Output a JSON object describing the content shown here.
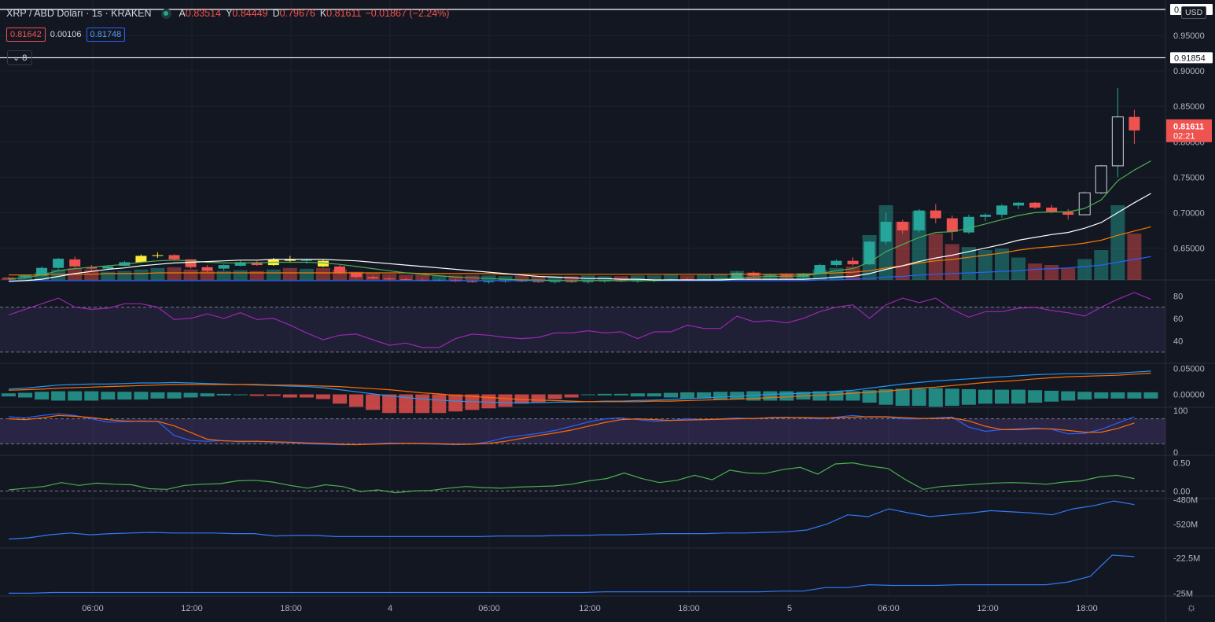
{
  "header": {
    "symbol": "XRP / ABD Doları · 1s · KRAKEN",
    "o_label": "A",
    "o_value": "0.83514",
    "h_label": "Y",
    "h_value": "0.84449",
    "l_label": "D",
    "l_value": "0.79676",
    "c_label": "K",
    "c_value": "0.81611",
    "change": "−0.01867 (−2.24%)"
  },
  "trade": {
    "sell": "0.81642",
    "spread": "0.00106",
    "buy": "0.81748"
  },
  "indicators_toggle": "8",
  "currency": "USD",
  "colors": {
    "up": "#26a69a",
    "down": "#ef5350",
    "bg": "#131722",
    "grid": "#1e222d",
    "yellow": "#ffeb3b"
  },
  "chart_data": {
    "type": "candlestick",
    "x_tick_labels": [
      "06:00",
      "12:00",
      "18:00",
      "4",
      "06:00",
      "12:00",
      "18:00",
      "5",
      "06:00",
      "12:00",
      "18:00"
    ],
    "price_axis": {
      "ticks": [
        "0.65000",
        "0.70000",
        "0.75000",
        "0.80000",
        "0.85000",
        "0.90000",
        "0.95000"
      ],
      "range": [
        0.605,
        1.0
      ],
      "hlines": [
        "0.98671",
        "0.91854"
      ],
      "last_price": "0.81611",
      "countdown": "02:21"
    },
    "candles": [
      [
        0.608,
        0.609,
        0.606,
        0.607
      ],
      [
        0.609,
        0.612,
        0.607,
        0.611
      ],
      [
        0.611,
        0.624,
        0.61,
        0.622
      ],
      [
        0.622,
        0.636,
        0.62,
        0.635
      ],
      [
        0.634,
        0.638,
        0.622,
        0.624
      ],
      [
        0.623,
        0.626,
        0.618,
        0.621
      ],
      [
        0.621,
        0.626,
        0.62,
        0.624
      ],
      [
        0.625,
        0.632,
        0.624,
        0.63
      ],
      [
        0.63,
        0.641,
        0.629,
        0.639
      ],
      [
        0.639,
        0.644,
        0.636,
        0.64
      ],
      [
        0.64,
        0.641,
        0.633,
        0.634
      ],
      [
        0.634,
        0.634,
        0.621,
        0.623
      ],
      [
        0.623,
        0.626,
        0.616,
        0.618
      ],
      [
        0.621,
        0.627,
        0.618,
        0.626
      ],
      [
        0.625,
        0.632,
        0.624,
        0.63
      ],
      [
        0.63,
        0.632,
        0.625,
        0.626
      ],
      [
        0.626,
        0.636,
        0.625,
        0.634
      ],
      [
        0.634,
        0.639,
        0.63,
        0.632
      ],
      [
        0.632,
        0.635,
        0.628,
        0.633
      ],
      [
        0.632,
        0.633,
        0.623,
        0.624
      ],
      [
        0.624,
        0.626,
        0.613,
        0.615
      ],
      [
        0.615,
        0.616,
        0.607,
        0.609
      ],
      [
        0.609,
        0.611,
        0.606,
        0.607
      ],
      [
        0.607,
        0.609,
        0.605,
        0.606
      ],
      [
        0.606,
        0.608,
        0.604,
        0.605
      ],
      [
        0.605,
        0.607,
        0.603,
        0.604
      ],
      [
        0.604,
        0.606,
        0.603,
        0.605
      ],
      [
        0.605,
        0.606,
        0.602,
        0.603
      ],
      [
        0.603,
        0.605,
        0.601,
        0.602
      ],
      [
        0.602,
        0.604,
        0.6,
        0.603
      ],
      [
        0.603,
        0.605,
        0.601,
        0.604
      ],
      [
        0.604,
        0.606,
        0.602,
        0.603
      ],
      [
        0.603,
        0.605,
        0.601,
        0.602
      ],
      [
        0.602,
        0.604,
        0.6,
        0.603
      ],
      [
        0.603,
        0.605,
        0.601,
        0.602
      ],
      [
        0.602,
        0.604,
        0.6,
        0.603
      ],
      [
        0.603,
        0.605,
        0.601,
        0.604
      ],
      [
        0.604,
        0.606,
        0.602,
        0.603
      ],
      [
        0.603,
        0.605,
        0.601,
        0.604
      ],
      [
        0.604,
        0.606,
        0.602,
        0.605
      ],
      [
        0.605,
        0.607,
        0.603,
        0.606
      ],
      [
        0.606,
        0.608,
        0.604,
        0.605
      ],
      [
        0.605,
        0.607,
        0.603,
        0.606
      ],
      [
        0.606,
        0.608,
        0.604,
        0.607
      ],
      [
        0.607,
        0.617,
        0.606,
        0.615
      ],
      [
        0.615,
        0.617,
        0.609,
        0.611
      ],
      [
        0.611,
        0.613,
        0.608,
        0.612
      ],
      [
        0.612,
        0.614,
        0.608,
        0.609
      ],
      [
        0.609,
        0.615,
        0.608,
        0.614
      ],
      [
        0.614,
        0.628,
        0.613,
        0.626
      ],
      [
        0.626,
        0.634,
        0.624,
        0.632
      ],
      [
        0.632,
        0.637,
        0.625,
        0.627
      ],
      [
        0.627,
        0.66,
        0.626,
        0.659
      ],
      [
        0.659,
        0.7,
        0.655,
        0.687
      ],
      [
        0.687,
        0.69,
        0.67,
        0.675
      ],
      [
        0.675,
        0.705,
        0.672,
        0.703
      ],
      [
        0.703,
        0.712,
        0.685,
        0.692
      ],
      [
        0.692,
        0.696,
        0.661,
        0.673
      ],
      [
        0.672,
        0.697,
        0.67,
        0.694
      ],
      [
        0.694,
        0.699,
        0.688,
        0.697
      ],
      [
        0.697,
        0.712,
        0.693,
        0.71
      ],
      [
        0.71,
        0.715,
        0.705,
        0.714
      ],
      [
        0.714,
        0.715,
        0.705,
        0.707
      ],
      [
        0.707,
        0.711,
        0.699,
        0.701
      ],
      [
        0.701,
        0.705,
        0.69,
        0.697
      ],
      [
        0.697,
        0.73,
        0.696,
        0.728
      ],
      [
        0.728,
        0.767,
        0.726,
        0.766
      ],
      [
        0.766,
        0.876,
        0.75,
        0.835
      ],
      [
        0.835,
        0.845,
        0.797,
        0.816
      ]
    ],
    "ema_white": [
      0.603,
      0.604,
      0.606,
      0.61,
      0.614,
      0.617,
      0.62,
      0.622,
      0.625,
      0.627,
      0.629,
      0.63,
      0.631,
      0.632,
      0.633,
      0.633,
      0.634,
      0.634,
      0.634,
      0.634,
      0.633,
      0.632,
      0.63,
      0.628,
      0.626,
      0.624,
      0.622,
      0.62,
      0.618,
      0.616,
      0.614,
      0.612,
      0.61,
      0.609,
      0.608,
      0.607,
      0.607,
      0.606,
      0.606,
      0.605,
      0.605,
      0.605,
      0.605,
      0.605,
      0.606,
      0.606,
      0.606,
      0.606,
      0.606,
      0.607,
      0.609,
      0.61,
      0.614,
      0.62,
      0.625,
      0.631,
      0.636,
      0.64,
      0.645,
      0.65,
      0.655,
      0.661,
      0.665,
      0.669,
      0.672,
      0.678,
      0.686,
      0.7,
      0.714,
      0.727
    ],
    "ema_green": [
      0.606,
      0.608,
      0.612,
      0.618,
      0.621,
      0.623,
      0.625,
      0.627,
      0.63,
      0.632,
      0.633,
      0.632,
      0.63,
      0.629,
      0.629,
      0.629,
      0.63,
      0.63,
      0.63,
      0.629,
      0.627,
      0.624,
      0.621,
      0.618,
      0.615,
      0.613,
      0.611,
      0.609,
      0.608,
      0.607,
      0.606,
      0.605,
      0.605,
      0.604,
      0.604,
      0.604,
      0.604,
      0.604,
      0.604,
      0.604,
      0.605,
      0.605,
      0.605,
      0.606,
      0.608,
      0.609,
      0.61,
      0.61,
      0.611,
      0.614,
      0.618,
      0.621,
      0.63,
      0.645,
      0.655,
      0.665,
      0.672,
      0.673,
      0.678,
      0.684,
      0.69,
      0.696,
      0.7,
      0.701,
      0.701,
      0.706,
      0.718,
      0.745,
      0.76,
      0.773
    ],
    "ema_orange": [
      0.612,
      0.612,
      0.612,
      0.613,
      0.613,
      0.613,
      0.614,
      0.614,
      0.614,
      0.615,
      0.615,
      0.615,
      0.615,
      0.615,
      0.615,
      0.615,
      0.615,
      0.615,
      0.615,
      0.615,
      0.615,
      0.615,
      0.615,
      0.615,
      0.615,
      0.614,
      0.614,
      0.614,
      0.614,
      0.614,
      0.613,
      0.613,
      0.613,
      0.613,
      0.613,
      0.613,
      0.613,
      0.613,
      0.613,
      0.613,
      0.613,
      0.613,
      0.613,
      0.613,
      0.613,
      0.613,
      0.613,
      0.613,
      0.613,
      0.614,
      0.615,
      0.616,
      0.618,
      0.622,
      0.625,
      0.629,
      0.632,
      0.634,
      0.637,
      0.64,
      0.643,
      0.647,
      0.65,
      0.652,
      0.654,
      0.657,
      0.661,
      0.668,
      0.674,
      0.68
    ],
    "ema_blue": [
      0.604,
      0.604,
      0.604,
      0.604,
      0.604,
      0.604,
      0.604,
      0.604,
      0.604,
      0.604,
      0.604,
      0.604,
      0.604,
      0.604,
      0.604,
      0.604,
      0.604,
      0.604,
      0.604,
      0.604,
      0.604,
      0.604,
      0.604,
      0.604,
      0.604,
      0.604,
      0.604,
      0.604,
      0.604,
      0.604,
      0.604,
      0.604,
      0.604,
      0.604,
      0.604,
      0.604,
      0.604,
      0.604,
      0.604,
      0.604,
      0.604,
      0.604,
      0.604,
      0.604,
      0.604,
      0.604,
      0.604,
      0.604,
      0.604,
      0.605,
      0.605,
      0.606,
      0.607,
      0.609,
      0.61,
      0.612,
      0.613,
      0.614,
      0.615,
      0.616,
      0.617,
      0.618,
      0.62,
      0.621,
      0.622,
      0.624,
      0.626,
      0.63,
      0.634,
      0.638
    ],
    "volume": [
      3,
      7,
      10,
      14,
      16,
      14,
      11,
      12,
      14,
      16,
      17,
      14,
      12,
      12,
      13,
      12,
      14,
      16,
      15,
      16,
      14,
      11,
      10,
      8,
      7,
      7,
      6,
      6,
      6,
      6,
      5,
      6,
      5,
      5,
      5,
      6,
      5,
      5,
      6,
      6,
      7,
      6,
      7,
      7,
      12,
      10,
      8,
      9,
      9,
      14,
      16,
      18,
      60,
      100,
      78,
      92,
      62,
      48,
      44,
      40,
      42,
      30,
      22,
      20,
      16,
      28,
      40,
      100,
      62
    ],
    "rsi": {
      "ticks": [
        "80",
        "60",
        "40"
      ],
      "levels": [
        70,
        30
      ],
      "values": [
        63,
        68,
        73,
        78,
        70,
        68,
        69,
        73,
        73,
        70,
        59,
        60,
        64,
        60,
        65,
        59,
        60,
        54,
        47,
        41,
        45,
        46,
        41,
        36,
        38,
        34,
        34,
        42,
        46,
        45,
        43,
        42,
        43,
        47,
        47,
        49,
        47,
        48,
        42,
        48,
        48,
        54,
        51,
        51,
        62,
        57,
        58,
        56,
        60,
        66,
        70,
        72,
        60,
        72,
        78,
        74,
        78,
        68,
        61,
        66,
        66,
        69,
        70,
        67,
        65,
        62,
        70,
        77,
        83,
        77
      ]
    },
    "macd": {
      "ticks": [
        "0.05000",
        "0.00000"
      ],
      "range": [
        -0.025,
        0.06
      ],
      "macd_line": [
        0.01,
        0.012,
        0.015,
        0.018,
        0.019,
        0.02,
        0.02,
        0.021,
        0.022,
        0.022,
        0.023,
        0.022,
        0.021,
        0.02,
        0.019,
        0.018,
        0.017,
        0.016,
        0.015,
        0.013,
        0.009,
        0.005,
        0.001,
        -0.003,
        -0.006,
        -0.009,
        -0.011,
        -0.013,
        -0.014,
        -0.015,
        -0.016,
        -0.016,
        -0.016,
        -0.015,
        -0.015,
        -0.014,
        -0.013,
        -0.013,
        -0.012,
        -0.011,
        -0.01,
        -0.008,
        -0.007,
        -0.005,
        -0.004,
        -0.002,
        0.0,
        0.001,
        0.002,
        0.004,
        0.006,
        0.008,
        0.012,
        0.016,
        0.02,
        0.023,
        0.026,
        0.028,
        0.03,
        0.032,
        0.034,
        0.036,
        0.038,
        0.039,
        0.04,
        0.04,
        0.04,
        0.041,
        0.043,
        0.045
      ],
      "signal_line": [
        0.008,
        0.009,
        0.01,
        0.012,
        0.013,
        0.014,
        0.015,
        0.016,
        0.017,
        0.018,
        0.019,
        0.019,
        0.019,
        0.019,
        0.019,
        0.019,
        0.018,
        0.018,
        0.017,
        0.016,
        0.015,
        0.013,
        0.011,
        0.009,
        0.006,
        0.003,
        0.001,
        -0.002,
        -0.004,
        -0.006,
        -0.008,
        -0.01,
        -0.011,
        -0.012,
        -0.013,
        -0.014,
        -0.014,
        -0.014,
        -0.014,
        -0.013,
        -0.013,
        -0.012,
        -0.011,
        -0.01,
        -0.009,
        -0.008,
        -0.006,
        -0.005,
        -0.003,
        -0.002,
        0.0,
        0.002,
        0.004,
        0.006,
        0.009,
        0.012,
        0.014,
        0.017,
        0.02,
        0.023,
        0.025,
        0.027,
        0.03,
        0.032,
        0.034,
        0.035,
        0.036,
        0.037,
        0.039,
        0.041
      ]
    },
    "stoch": {
      "ticks": [
        "100",
        "0"
      ],
      "levels": [
        80,
        20
      ],
      "k": [
        85,
        82,
        88,
        92,
        88,
        80,
        72,
        73,
        75,
        74,
        40,
        28,
        26,
        28,
        25,
        26,
        24,
        23,
        20,
        19,
        18,
        18,
        20,
        22,
        21,
        20,
        19,
        18,
        19,
        25,
        35,
        40,
        45,
        52,
        62,
        72,
        80,
        82,
        78,
        74,
        76,
        80,
        78,
        80,
        82,
        80,
        83,
        84,
        82,
        80,
        84,
        88,
        84,
        84,
        80,
        80,
        82,
        84,
        60,
        50,
        54,
        56,
        58,
        55,
        44,
        45,
        55,
        70,
        85
      ],
      "d": [
        80,
        78,
        82,
        88,
        86,
        83,
        78,
        75,
        74,
        74,
        63,
        47,
        31,
        27,
        26,
        26,
        25,
        24,
        22,
        21,
        19,
        18,
        19,
        20,
        21,
        21,
        20,
        19,
        19,
        21,
        26,
        33,
        40,
        46,
        53,
        62,
        71,
        78,
        80,
        78,
        76,
        77,
        78,
        79,
        80,
        81,
        82,
        83,
        83,
        82,
        82,
        84,
        85,
        85,
        83,
        81,
        81,
        82,
        75,
        62,
        54,
        54,
        56,
        56,
        52,
        48,
        48,
        57,
        70
      ]
    },
    "osc": {
      "ticks": [
        "0.50",
        "0.00"
      ],
      "values": [
        0.02,
        0.05,
        0.08,
        0.15,
        0.1,
        0.14,
        0.12,
        0.11,
        0.04,
        0.03,
        0.1,
        0.12,
        0.13,
        0.18,
        0.19,
        0.16,
        0.1,
        0.05,
        0.11,
        0.08,
        -0.01,
        0.02,
        -0.03,
        0.0,
        0.01,
        0.05,
        0.08,
        0.06,
        0.05,
        0.07,
        0.08,
        0.09,
        0.12,
        0.18,
        0.22,
        0.32,
        0.22,
        0.15,
        0.19,
        0.28,
        0.2,
        0.37,
        0.32,
        0.31,
        0.38,
        0.42,
        0.3,
        0.48,
        0.5,
        0.44,
        0.4,
        0.2,
        0.03,
        0.08,
        0.1,
        0.12,
        0.14,
        0.15,
        0.14,
        0.12,
        0.16,
        0.18,
        0.25,
        0.28,
        0.22
      ]
    },
    "obv": {
      "ticks": [
        "-480M",
        "-520M"
      ],
      "range": [
        -560,
        -478
      ],
      "values": [
        -545,
        -543,
        -538,
        -535,
        -538,
        -536,
        -535,
        -534,
        -535,
        -535,
        -535,
        -536,
        -536,
        -540,
        -539,
        -539,
        -541,
        -541,
        -541,
        -541,
        -541,
        -541,
        -541,
        -541,
        -540,
        -540,
        -540,
        -539,
        -539,
        -538,
        -538,
        -537,
        -536,
        -536,
        -536,
        -535,
        -535,
        -534,
        -533,
        -530,
        -520,
        -505,
        -508,
        -495,
        -502,
        -508,
        -505,
        -502,
        -498,
        -500,
        -502,
        -505,
        -495,
        -490,
        -482,
        -488
      ]
    },
    "acc": {
      "ticks": [
        "-22.5M",
        "-25M"
      ],
      "range": [
        -25.2,
        -21.8
      ],
      "values": [
        -25.0,
        -25.0,
        -24.95,
        -24.95,
        -24.95,
        -24.95,
        -24.95,
        -24.95,
        -24.95,
        -24.95,
        -24.95,
        -24.95,
        -24.95,
        -24.95,
        -24.95,
        -24.95,
        -24.95,
        -24.95,
        -24.95,
        -24.95,
        -24.95,
        -24.95,
        -24.95,
        -24.95,
        -24.95,
        -24.95,
        -24.95,
        -24.9,
        -24.9,
        -24.9,
        -24.9,
        -24.9,
        -24.9,
        -24.9,
        -24.9,
        -24.85,
        -24.85,
        -24.6,
        -24.6,
        -24.4,
        -24.45,
        -24.45,
        -24.45,
        -24.4,
        -24.4,
        -24.4,
        -24.4,
        -24.4,
        -24.2,
        -23.8,
        -22.3,
        -22.4
      ]
    }
  }
}
